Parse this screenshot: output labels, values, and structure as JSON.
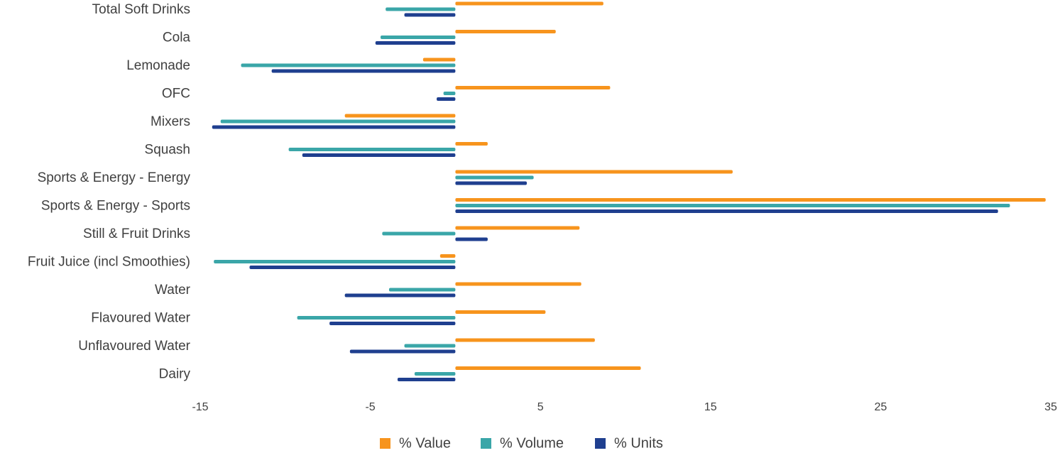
{
  "chart_data": {
    "type": "bar",
    "orientation": "horizontal",
    "categories": [
      "Total Soft Drinks",
      "Cola",
      "Lemonade",
      "OFC",
      "Mixers",
      "Squash",
      "Sports & Energy - Energy",
      "Sports & Energy - Sports",
      "Still & Fruit Drinks",
      "Fruit Juice (incl Smoothies)",
      "Water",
      "Flavoured Water",
      "Unflavoured Water",
      "Dairy"
    ],
    "series": [
      {
        "name": "% Value",
        "color": "#F7941D",
        "values": [
          8.7,
          5.9,
          -1.9,
          9.1,
          -6.5,
          1.9,
          16.3,
          34.7,
          7.3,
          -0.9,
          7.4,
          5.3,
          8.2,
          10.9
        ]
      },
      {
        "name": "% Volume",
        "color": "#3AA6A8",
        "values": [
          -4.1,
          -4.4,
          -12.6,
          -0.7,
          -13.8,
          -9.8,
          4.6,
          32.6,
          -4.3,
          -14.2,
          -3.9,
          -9.3,
          -3.0,
          -2.4
        ]
      },
      {
        "name": "% Units",
        "color": "#1F3F8F",
        "values": [
          -3.0,
          -4.7,
          -10.8,
          -1.1,
          -14.3,
          -9.0,
          4.2,
          31.9,
          1.9,
          -12.1,
          -6.5,
          -7.4,
          -6.2,
          -3.4
        ]
      }
    ],
    "xticks": [
      "-15",
      "-5",
      "5",
      "15",
      "25",
      "35"
    ],
    "xlim": [
      -15,
      35
    ],
    "grid": false,
    "legend_position": "bottom",
    "title": "",
    "xlabel": "",
    "ylabel": ""
  }
}
